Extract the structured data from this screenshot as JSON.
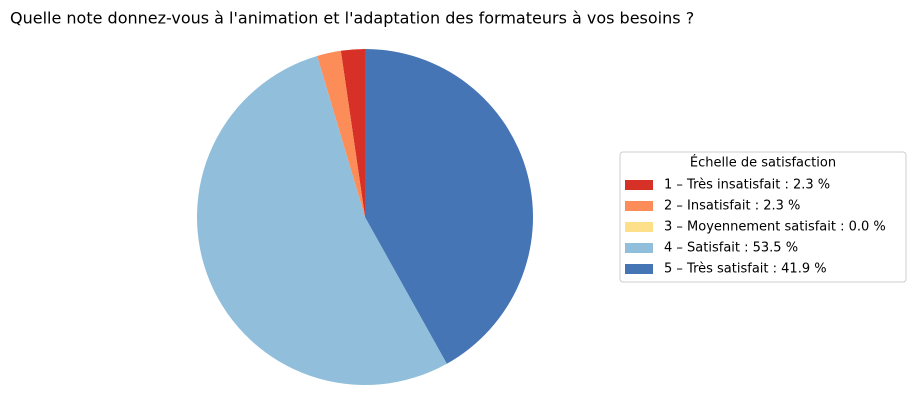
{
  "chart_data": {
    "type": "pie",
    "title": "Quelle note donnez-vous à l'animation et l'adaptation des formateurs à vos besoins ?",
    "legend_title": "Échelle de satisfaction",
    "categories": [
      "1 – Très insatisfait : 2.3 %",
      "2 – Insatisfait : 2.3 %",
      "3 – Moyennement satisfait : 0.0 %",
      "4 – Satisfait : 53.5 %",
      "5 – Très satisfait : 41.9 %"
    ],
    "values": [
      2.3,
      2.3,
      0.0,
      53.5,
      41.9
    ],
    "colors": [
      "#d73027",
      "#fc8d59",
      "#fee08b",
      "#91bfdb",
      "#4575b4"
    ],
    "legend": "right"
  }
}
